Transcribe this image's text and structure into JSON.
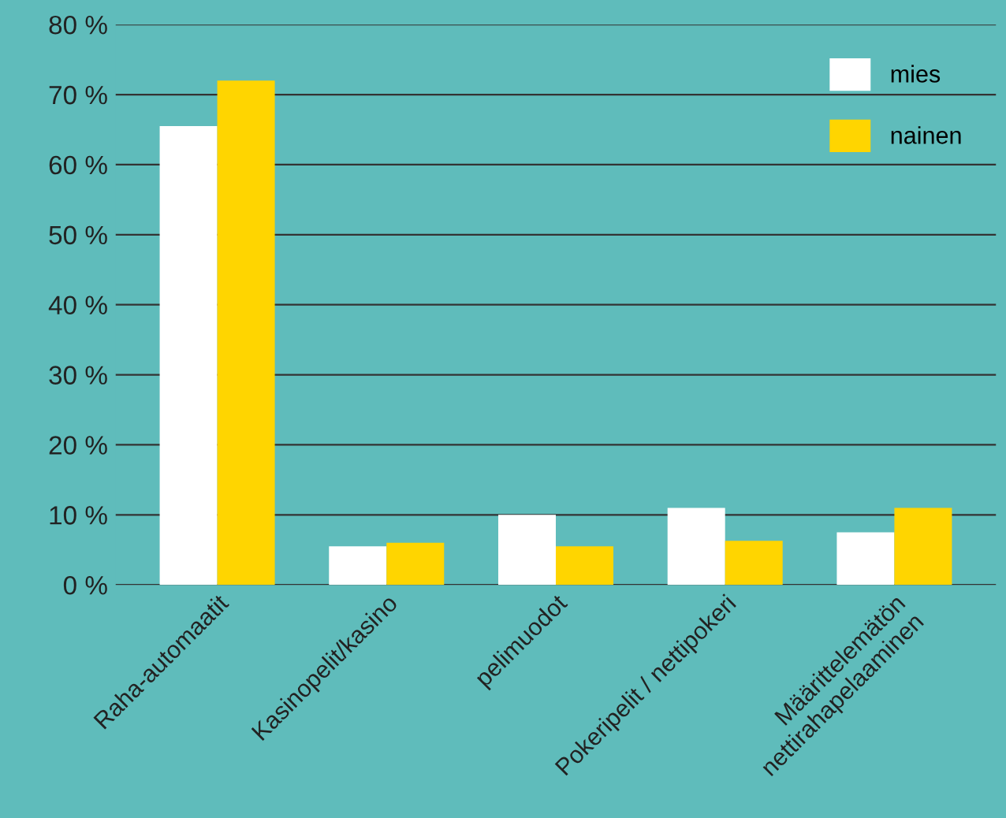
{
  "chart_data": {
    "type": "bar",
    "categories": [
      "Raha-automaatit",
      "Kasinopelit/kasino",
      "pelimuodot",
      "Pokeripelit / nettipokeri",
      "Määrittelemätön\nnettirahapelaaminen"
    ],
    "series": [
      {
        "name": "mies",
        "color": "#ffffff",
        "values": [
          65.5,
          5.5,
          10,
          11,
          7.5
        ]
      },
      {
        "name": "nainen",
        "color": "#ffd500",
        "values": [
          72,
          6,
          5.5,
          6.3,
          11
        ]
      }
    ],
    "ylim": [
      0,
      80
    ],
    "yticks": [
      {
        "value": 0,
        "label": "0 %"
      },
      {
        "value": 10,
        "label": "10 %"
      },
      {
        "value": 20,
        "label": "20 %"
      },
      {
        "value": 30,
        "label": "30 %"
      },
      {
        "value": 40,
        "label": "40 %"
      },
      {
        "value": 50,
        "label": "50 %"
      },
      {
        "value": 60,
        "label": "60 %"
      },
      {
        "value": 70,
        "label": "70 %"
      },
      {
        "value": 80,
        "label": "80 %"
      }
    ],
    "grid": "y",
    "legend": "top right"
  }
}
